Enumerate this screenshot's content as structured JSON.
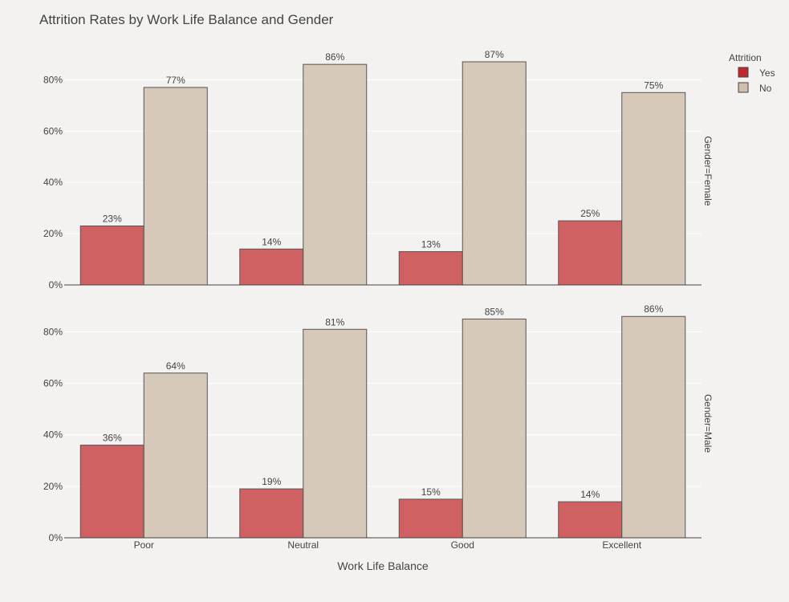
{
  "chart_data": {
    "type": "bar",
    "title": "Attrition Rates by Work Life Balance and Gender",
    "xlabel": "Work Life Balance",
    "ylabel": "",
    "categories": [
      "Poor",
      "Neutral",
      "Good",
      "Excellent"
    ],
    "ylim": [
      0,
      0.92
    ],
    "yticks": [
      {
        "value": 0,
        "label": "0%"
      },
      {
        "value": 0.2,
        "label": "20%"
      },
      {
        "value": 0.4,
        "label": "40%"
      },
      {
        "value": 0.6,
        "label": "60%"
      },
      {
        "value": 0.8,
        "label": "80%"
      }
    ],
    "grid": true,
    "legend": {
      "title": "Attrition",
      "position": "top-right",
      "entries": [
        {
          "name": "Yes",
          "color": "#c0282d"
        },
        {
          "name": "No",
          "color": "#cfbeab"
        }
      ]
    },
    "panels": [
      {
        "facet_label": "Gender=Female",
        "series": [
          {
            "name": "Yes",
            "values": [
              0.23,
              0.14,
              0.13,
              0.25
            ],
            "labels": [
              "23%",
              "14%",
              "13%",
              "25%"
            ]
          },
          {
            "name": "No",
            "values": [
              0.77,
              0.86,
              0.87,
              0.75
            ],
            "labels": [
              "77%",
              "86%",
              "87%",
              "75%"
            ]
          }
        ]
      },
      {
        "facet_label": "Gender=Male",
        "series": [
          {
            "name": "Yes",
            "values": [
              0.36,
              0.19,
              0.15,
              0.14
            ],
            "labels": [
              "36%",
              "19%",
              "15%",
              "14%"
            ]
          },
          {
            "name": "No",
            "values": [
              0.64,
              0.81,
              0.85,
              0.86
            ],
            "labels": [
              "64%",
              "81%",
              "85%",
              "86%"
            ]
          }
        ]
      }
    ]
  }
}
